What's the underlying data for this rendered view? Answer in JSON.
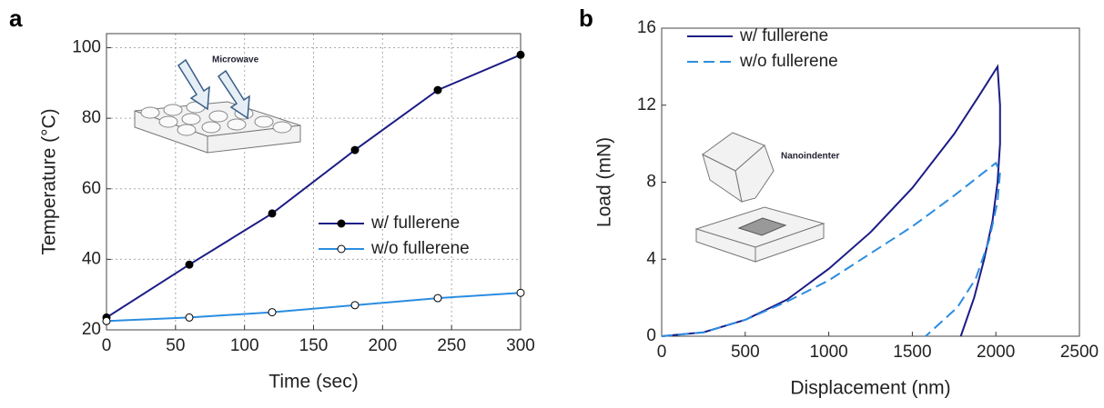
{
  "chart_data": [
    {
      "type": "line",
      "panel": "a",
      "xlabel": "Time (sec)",
      "ylabel": "Temperature (°C)",
      "inset_label": "Microwave",
      "xlim": [
        0,
        300
      ],
      "ylim": [
        20,
        104
      ],
      "xticks": [
        0,
        50,
        100,
        150,
        200,
        250,
        300
      ],
      "yticks": [
        20,
        40,
        60,
        80,
        100
      ],
      "grid": true,
      "x": [
        0,
        60,
        120,
        180,
        240,
        300
      ],
      "series": [
        {
          "name": "w/ fullerene",
          "color": "#1c1c86",
          "marker": "filled",
          "line_style": "solid",
          "values": [
            23.5,
            38.5,
            53,
            71,
            88,
            98
          ]
        },
        {
          "name": "w/o fullerene",
          "color": "#2b8de0",
          "marker": "open",
          "line_style": "solid",
          "values": [
            22.5,
            23.5,
            25,
            27,
            29,
            30.5
          ]
        }
      ]
    },
    {
      "type": "line",
      "panel": "b",
      "xlabel": "Displacement (nm)",
      "ylabel": "Load (mN)",
      "inset_label": "Nanoindenter",
      "xlim": [
        0,
        2500
      ],
      "ylim": [
        0,
        16
      ],
      "xticks": [
        0,
        500,
        1000,
        1500,
        2000,
        2500
      ],
      "yticks": [
        0,
        4,
        8,
        12,
        16
      ],
      "grid": false,
      "series": [
        {
          "name": "w/ fullerene",
          "color": "#1c1c86",
          "marker": "none",
          "line_style": "solid",
          "x": [
            0,
            250,
            500,
            750,
            1000,
            1250,
            1500,
            1750,
            1900,
            2010,
            2025,
            2025,
            2010,
            1980,
            1930,
            1870,
            1790
          ],
          "values": [
            0,
            0.2,
            0.85,
            1.9,
            3.5,
            5.4,
            7.7,
            10.5,
            12.5,
            14,
            12,
            10,
            8,
            6,
            4,
            2,
            0
          ]
        },
        {
          "name": "w/o fullerene",
          "color": "#2b8de0",
          "marker": "none",
          "line_style": "dashed",
          "x": [
            0,
            250,
            500,
            750,
            1000,
            1250,
            1500,
            1750,
            2000,
            2025,
            2010,
            1960,
            1880,
            1770,
            1580
          ],
          "values": [
            0,
            0.2,
            0.85,
            1.8,
            2.9,
            4.3,
            5.7,
            7.3,
            9,
            8.5,
            7,
            5,
            3,
            1.5,
            0
          ]
        }
      ]
    }
  ]
}
